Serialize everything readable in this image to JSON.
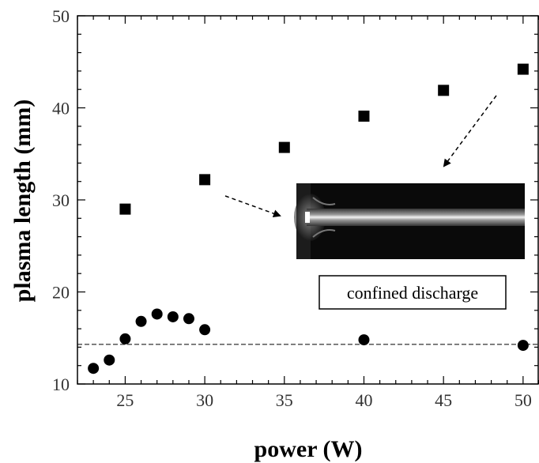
{
  "chart_data": {
    "type": "scatter",
    "title": "",
    "xlabel": "power (W)",
    "ylabel": "plasma length (mm)",
    "xlim": [
      22,
      51
    ],
    "ylim": [
      10,
      50
    ],
    "x_ticks": [
      25,
      30,
      35,
      40,
      45,
      50
    ],
    "y_ticks": [
      10,
      20,
      30,
      40,
      50
    ],
    "grid": false,
    "series": [
      {
        "marker": "square",
        "color": "#000000",
        "points": [
          [
            25,
            29.0
          ],
          [
            30,
            32.2
          ],
          [
            35,
            35.7
          ],
          [
            40,
            39.1
          ],
          [
            45,
            41.9
          ],
          [
            50,
            44.2
          ]
        ]
      },
      {
        "marker": "circle",
        "color": "#000000",
        "points": [
          [
            23,
            11.7
          ],
          [
            24,
            12.6
          ],
          [
            25,
            14.9
          ],
          [
            26,
            16.8
          ],
          [
            27,
            17.6
          ],
          [
            28,
            17.3
          ],
          [
            29,
            17.1
          ],
          [
            30,
            15.9
          ],
          [
            40,
            14.8
          ],
          [
            50,
            14.2
          ]
        ]
      }
    ],
    "reference_line": {
      "y": 14.3,
      "style": "dashed"
    },
    "annotation": {
      "text": "confined discharge"
    },
    "inset_image": "plasma-discharge-photo"
  }
}
